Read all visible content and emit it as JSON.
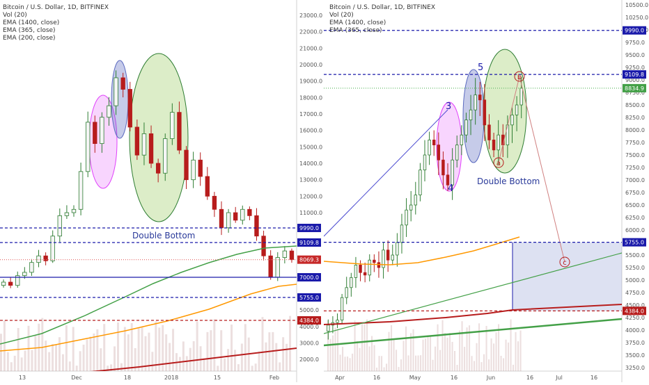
{
  "colors": {
    "up": "#f5f5f5",
    "up_stroke": "#2e7d32",
    "down": "#b71c1c",
    "blue_line": "#1a1aaa",
    "red_line": "#b71c1c",
    "green_line": "#2e7d32",
    "orange": "#ff9800",
    "pink": "#e040fb",
    "purple": "#5c6bc0",
    "green_ell": "#8bc34a",
    "annotation": "#2a3a9a"
  },
  "chart_data": [
    {
      "type": "candlestick",
      "panel": "left",
      "title": "Bitcoin / U.S. Dollar, 1D, BITFINEX",
      "indicators": [
        "Vol (20)",
        "EMA (1400, close)",
        "EMA (365, close)",
        "EMA (200, close)"
      ],
      "x_ticks": [
        "13",
        "Dec",
        "18",
        "2018",
        "15",
        "Feb"
      ],
      "y_ticks": [
        "23000.0",
        "22000.0",
        "21000.0",
        "20000.0",
        "19000.0",
        "18000.0",
        "17000.0",
        "16000.0",
        "15000.0",
        "14000.0",
        "13000.0",
        "12000.0",
        "11000.0",
        "5000.0",
        "4000.0",
        "3000.0",
        "2000.0"
      ],
      "ylim": [
        1500,
        23500
      ],
      "horizontal_levels": [
        {
          "label": "9990.0",
          "value": 9990,
          "style": "blue-dashed"
        },
        {
          "label": "9109.8",
          "value": 9109.8,
          "style": "blue-dashed"
        },
        {
          "label": "8069.3",
          "value": 8069.3,
          "style": "red-price"
        },
        {
          "label": "7000.0",
          "value": 7000,
          "style": "blue-solid"
        },
        {
          "label": "5755.0",
          "value": 5755,
          "style": "blue-dashed"
        },
        {
          "label": "4384.0",
          "value": 4384,
          "style": "red-dashed"
        }
      ],
      "annotations": [
        "Double Bottom"
      ],
      "close_path": [
        6700,
        6500,
        7100,
        7300,
        7900,
        8300,
        8000,
        9500,
        10800,
        11000,
        11200,
        13500,
        16500,
        15200,
        16800,
        17500,
        19200,
        18500,
        16200,
        14500,
        15800,
        14000,
        13400,
        15500,
        17100,
        14800,
        13000,
        14200,
        13200,
        12000,
        11200,
        10000,
        11000,
        10500,
        11200,
        10800,
        9500,
        8300,
        7000,
        8200,
        8600,
        8069
      ]
    },
    {
      "type": "candlestick",
      "panel": "right",
      "title": "Bitcoin / U.S. Dollar, 1D, BITFINEX",
      "indicators": [
        "Vol (20)",
        "EMA (1400, close)",
        "EMA (365, close)"
      ],
      "x_ticks": [
        "Apr",
        "16",
        "May",
        "16",
        "Jun",
        "16",
        "Jul",
        "16"
      ],
      "y_ticks": [
        "10500.0",
        "10250.0",
        "10000.0",
        "9750.0",
        "9500.0",
        "9250.0",
        "9000.0",
        "8750.0",
        "8500.0",
        "8250.0",
        "8000.0",
        "7750.0",
        "7500.0",
        "7250.0",
        "7000.0",
        "6750.0",
        "6500.0",
        "6250.0",
        "6000.0",
        "5750.0",
        "5500.0",
        "5250.0",
        "5000.0",
        "4750.0",
        "4500.0",
        "4250.0",
        "4000.0",
        "3750.0",
        "3500.0",
        "3250.0"
      ],
      "ylim": [
        3150,
        10600
      ],
      "horizontal_levels": [
        {
          "label": "9990.0",
          "value": 9990,
          "style": "blue-dashed"
        },
        {
          "label": "9109.8",
          "value": 9109.8,
          "style": "blue-dashed"
        },
        {
          "label": "8834.9",
          "value": 8834.9,
          "style": "green-price"
        },
        {
          "label": "5755.0",
          "value": 5755,
          "style": "blue-dashed"
        },
        {
          "label": "4384.0",
          "value": 4384,
          "style": "red-dashed"
        }
      ],
      "wave_labels": [
        "3",
        "4",
        "5",
        "a",
        "b",
        "c"
      ],
      "annotations": [
        "Double Bottom"
      ],
      "close_path": [
        4100,
        4150,
        4200,
        4650,
        4850,
        5050,
        5300,
        5150,
        5100,
        5400,
        5350,
        5250,
        5600,
        5400,
        5500,
        5750,
        6100,
        6400,
        6500,
        6700,
        7200,
        7500,
        7800,
        7700,
        7400,
        7100,
        6900,
        7400,
        7700,
        7900,
        8200,
        8400,
        8700,
        8600,
        8100,
        7800,
        7600,
        7900,
        7700,
        8100,
        8300,
        8500,
        8835
      ]
    }
  ]
}
